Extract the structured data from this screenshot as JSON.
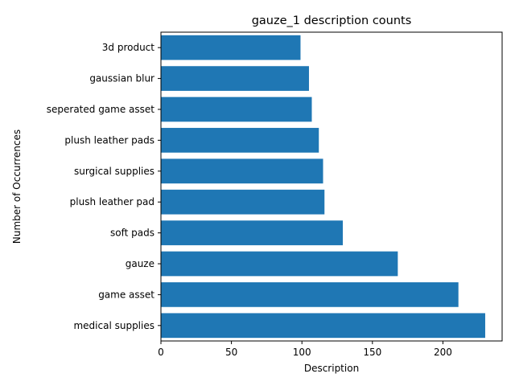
{
  "chart_data": {
    "type": "bar",
    "orientation": "horizontal",
    "title": "gauze_1 description counts",
    "xlabel": "Description",
    "ylabel": "Number of Occurrences",
    "categories": [
      "medical supplies",
      "game asset",
      "gauze",
      "soft pads",
      "plush leather pad",
      "surgical supplies",
      "plush leather pads",
      "seperated game asset",
      "gaussian blur",
      "3d product"
    ],
    "values": [
      230,
      211,
      168,
      129,
      116,
      115,
      112,
      107,
      105,
      99
    ],
    "xlim": [
      0,
      242
    ],
    "xticks": [
      0,
      50,
      100,
      150,
      200
    ],
    "bar_color": "#1f77b4",
    "grid": false,
    "legend": "none"
  }
}
